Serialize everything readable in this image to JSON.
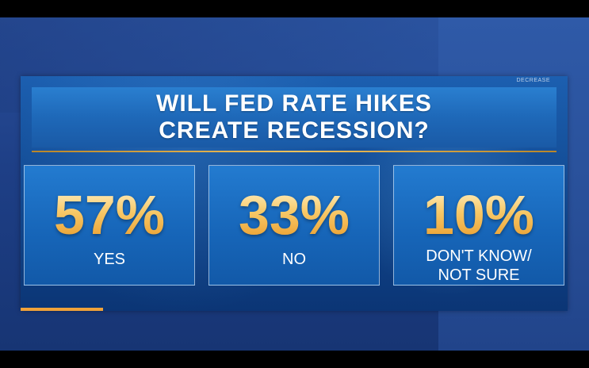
{
  "corner_label": "DECREASE",
  "title": {
    "line1": "WILL FED RATE HIKES",
    "line2": "CREATE RECESSION?"
  },
  "chart_data": {
    "type": "table",
    "title": "WILL FED RATE HIKES CREATE RECESSION?",
    "categories": [
      "YES",
      "NO",
      "DON'T KNOW/ NOT SURE"
    ],
    "values": [
      57,
      33,
      10
    ],
    "unit": "%"
  },
  "stats": [
    {
      "percent": "57%",
      "label": "YES"
    },
    {
      "percent": "33%",
      "label": "NO"
    },
    {
      "percent": "10%",
      "label": "DON'T KNOW/\nNOT SURE"
    }
  ],
  "colors": {
    "accent_gold": "#f2c15b",
    "box_blue": "#1766b9",
    "stripe_orange": "#f0a23a"
  }
}
